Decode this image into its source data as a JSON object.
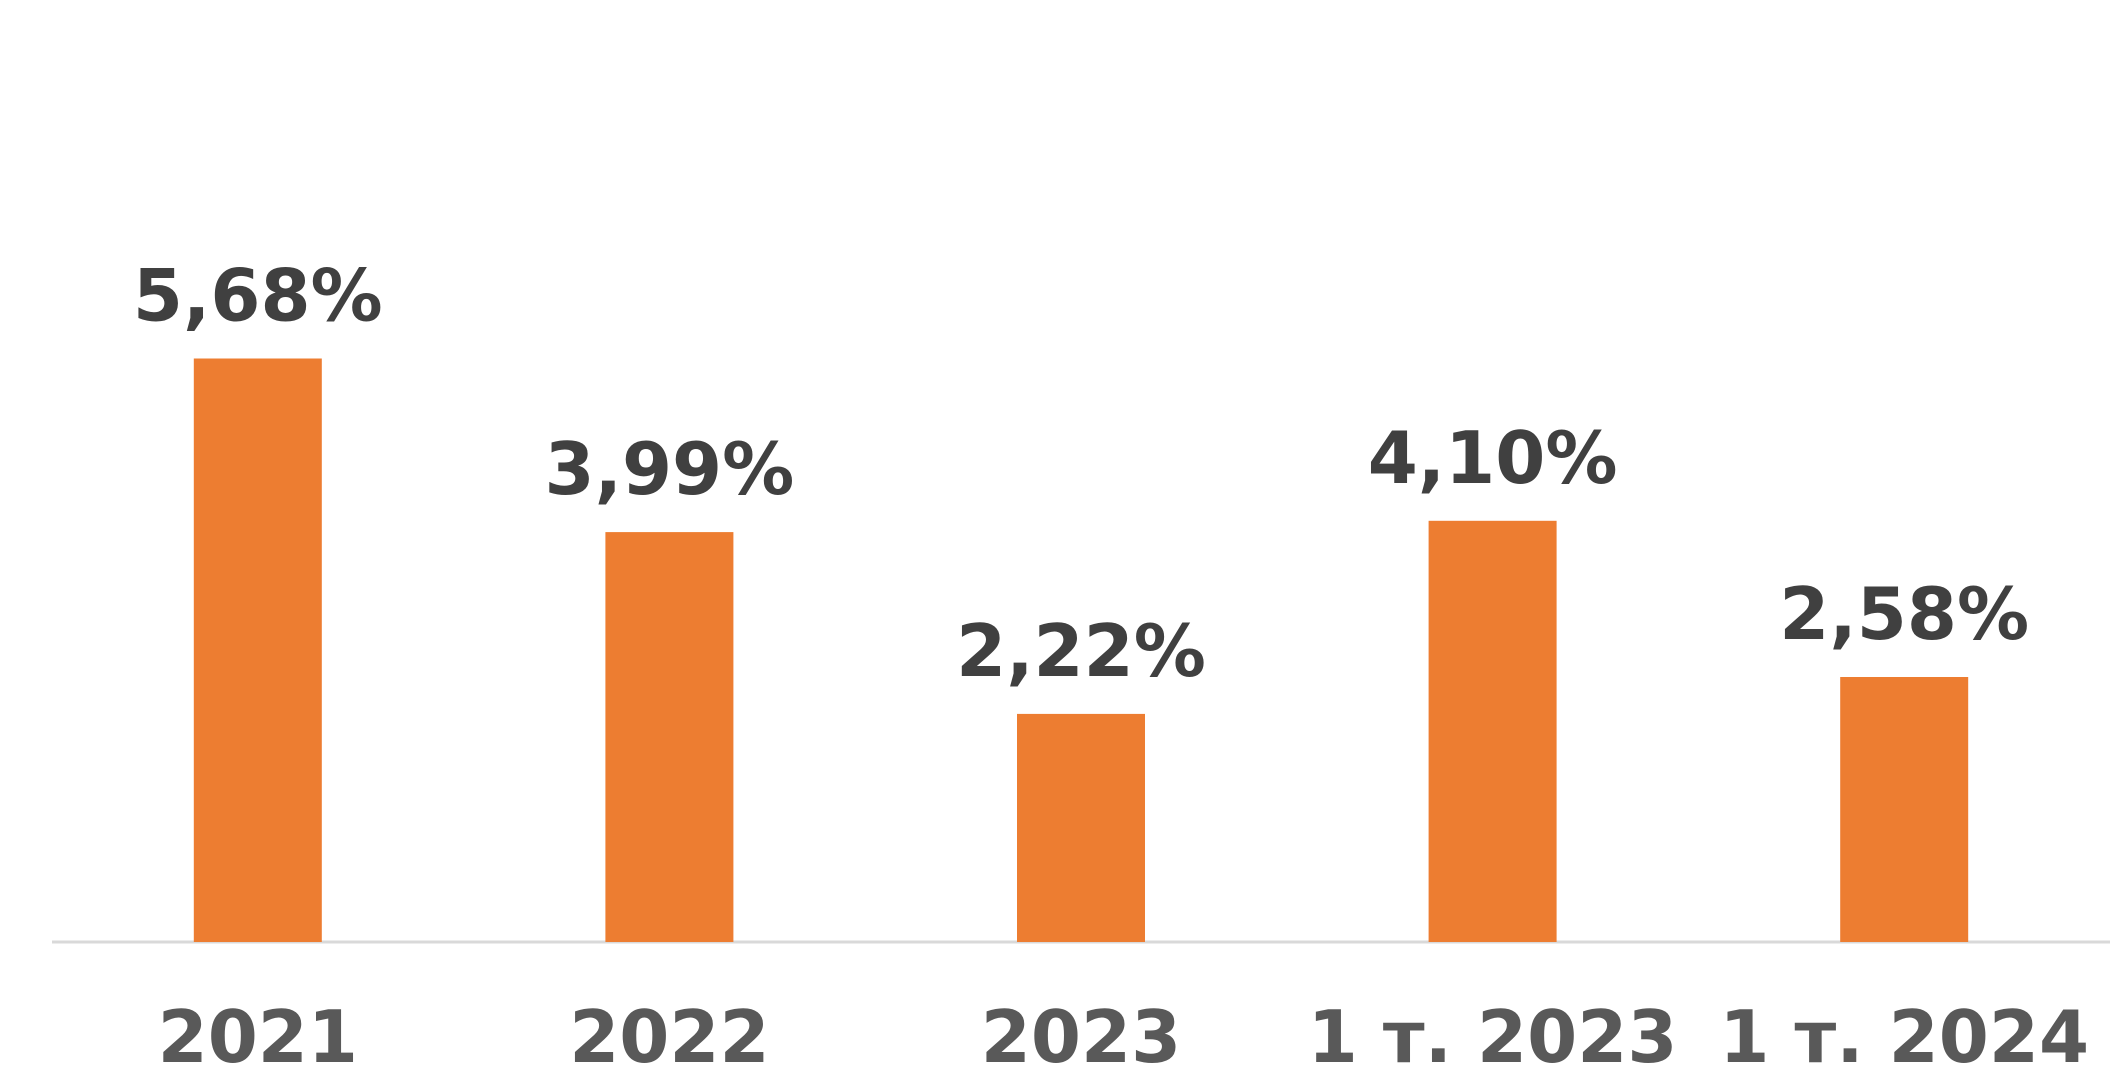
{
  "chart_data": {
    "type": "bar",
    "categories": [
      "2021",
      "2022",
      "2023",
      "1 т. 2023",
      "1 т. 2024"
    ],
    "values": [
      5.68,
      3.99,
      2.22,
      4.1,
      2.58
    ],
    "data_labels": [
      "5,68%",
      "3,99%",
      "2,22%",
      "4,10%",
      "2,58%"
    ],
    "title": "",
    "xlabel": "",
    "ylabel": "",
    "ylim": [
      0,
      6.6
    ],
    "grid": false,
    "legend": "none",
    "colors": {
      "bar": "#ED7D31",
      "data_label": "#404040",
      "category_label": "#595959",
      "axis_line": "#D9D9D9"
    }
  }
}
